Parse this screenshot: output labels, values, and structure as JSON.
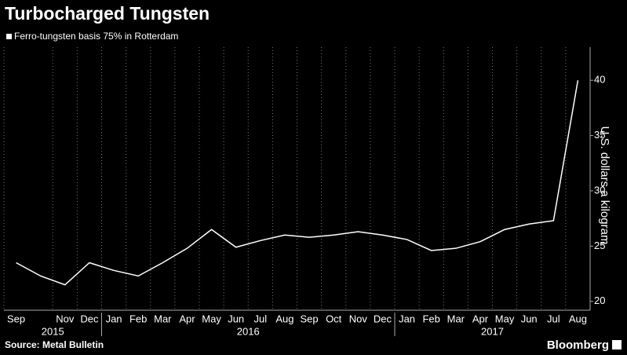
{
  "chart_data": {
    "type": "line",
    "title": "Turbocharged Tungsten",
    "y_axis_label": "U.S. dollars a kilogram",
    "source": "Source: Metal Bulletin",
    "brand": "Bloomberg",
    "x": [
      "2015-09",
      "2015-10",
      "2015-11",
      "2015-12",
      "2016-01",
      "2016-02",
      "2016-03",
      "2016-04",
      "2016-05",
      "2016-06",
      "2016-07",
      "2016-08",
      "2016-09",
      "2016-10",
      "2016-11",
      "2016-12",
      "2017-01",
      "2017-02",
      "2017-03",
      "2017-04",
      "2017-05",
      "2017-06",
      "2017-07",
      "2017-08"
    ],
    "series": [
      {
        "name": "Ferro-tungsten basis 75% in Rotterdam",
        "color": "#ffffff",
        "values": [
          23.5,
          22.3,
          21.5,
          23.5,
          22.8,
          22.3,
          23.5,
          24.8,
          26.5,
          24.9,
          25.5,
          26,
          25.8,
          26,
          26.3,
          26,
          25.6,
          24.6,
          24.8,
          25.4,
          26.5,
          27,
          27.3,
          40
        ]
      }
    ],
    "xticks": [
      {
        "value": "2015-09",
        "label": "Sep"
      },
      {
        "value": "2015-11",
        "label": "Nov"
      },
      {
        "value": "2015-12",
        "label": "Dec"
      },
      {
        "value": "2016-01",
        "label": "Jan"
      },
      {
        "value": "2016-02",
        "label": "Feb"
      },
      {
        "value": "2016-03",
        "label": "Mar"
      },
      {
        "value": "2016-04",
        "label": "Apr"
      },
      {
        "value": "2016-05",
        "label": "May"
      },
      {
        "value": "2016-06",
        "label": "Jun"
      },
      {
        "value": "2016-07",
        "label": "Jul"
      },
      {
        "value": "2016-08",
        "label": "Aug"
      },
      {
        "value": "2016-09",
        "label": "Sep"
      },
      {
        "value": "2016-10",
        "label": "Oct"
      },
      {
        "value": "2016-11",
        "label": "Nov"
      },
      {
        "value": "2016-12",
        "label": "Dec"
      },
      {
        "value": "2017-01",
        "label": "Jan"
      },
      {
        "value": "2017-02",
        "label": "Feb"
      },
      {
        "value": "2017-03",
        "label": "Mar"
      },
      {
        "value": "2017-04",
        "label": "Apr"
      },
      {
        "value": "2017-05",
        "label": "May"
      },
      {
        "value": "2017-06",
        "label": "Jun"
      },
      {
        "value": "2017-07",
        "label": "Jul"
      },
      {
        "value": "2017-08",
        "label": "Aug"
      }
    ],
    "years": [
      "2015",
      "2016",
      "2017"
    ],
    "ylim": [
      19.2,
      43
    ],
    "yticks": [
      20,
      25,
      30,
      35,
      40
    ],
    "y_axis_side": "right",
    "grid": true
  }
}
